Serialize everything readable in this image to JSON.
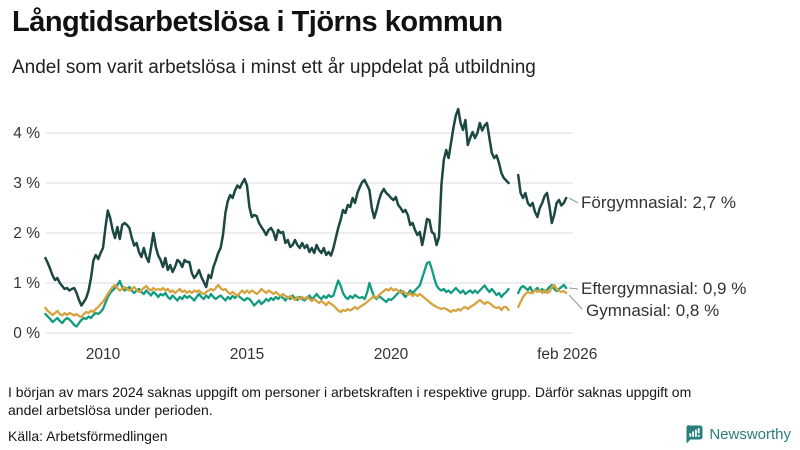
{
  "header": {
    "title": "Långtidsarbetslösa i Tjörns kommun",
    "subtitle": "Andel som varit arbetslösa i minst ett år uppdelat på utbildning"
  },
  "chart_data": {
    "type": "line",
    "title": "Långtidsarbetslösa i Tjörns kommun",
    "x_start_year": 2008,
    "x_months_per_point": 1,
    "x_tick_labels": [
      "2010",
      "2015",
      "2020",
      "feb 2026"
    ],
    "x_tick_years": [
      2010,
      2015,
      2020,
      2026.12
    ],
    "y_tick_labels": [
      "0 %",
      "1 %",
      "2 %",
      "3 %",
      "4 %"
    ],
    "y_ticks": [
      0,
      1,
      2,
      3,
      4
    ],
    "ylim": [
      0,
      4.6
    ],
    "grid": true,
    "gap_note": "mars 2024",
    "series": [
      {
        "name": "Förgymnasial",
        "end_label": "Förgymnasial: 2,7 %",
        "end_value": "2,7 %",
        "color": "#1c4742",
        "values": [
          1.5,
          1.4,
          1.28,
          1.15,
          1.06,
          1.1,
          1.0,
          0.94,
          0.88,
          0.9,
          0.85,
          0.88,
          0.9,
          0.8,
          0.66,
          0.55,
          0.62,
          0.7,
          0.85,
          1.1,
          1.45,
          1.56,
          1.48,
          1.6,
          1.7,
          2.1,
          2.45,
          2.3,
          2.06,
          1.9,
          2.12,
          1.88,
          2.16,
          2.2,
          2.16,
          2.1,
          1.9,
          1.75,
          1.8,
          1.62,
          1.52,
          1.7,
          1.52,
          1.42,
          1.7,
          2.0,
          1.72,
          1.55,
          1.46,
          1.32,
          1.5,
          1.26,
          1.36,
          1.22,
          1.32,
          1.46,
          1.42,
          1.32,
          1.46,
          1.42,
          1.42,
          1.2,
          1.1,
          1.16,
          1.26,
          1.12,
          1.02,
          0.92,
          1.16,
          1.1,
          1.32,
          1.45,
          1.6,
          1.7,
          1.96,
          2.4,
          2.64,
          2.76,
          2.7,
          2.85,
          2.95,
          2.9,
          3.0,
          3.08,
          2.95,
          2.52,
          2.32,
          2.36,
          2.34,
          2.2,
          2.12,
          2.05,
          1.96,
          2.06,
          2.1,
          2.02,
          1.86,
          2.06,
          2.0,
          2.02,
          1.8,
          1.86,
          1.72,
          1.76,
          1.86,
          1.76,
          1.7,
          1.8,
          1.7,
          1.76,
          1.62,
          1.7,
          1.6,
          1.76,
          1.66,
          1.6,
          1.7,
          1.56,
          1.62,
          1.55,
          1.7,
          1.9,
          2.1,
          2.26,
          2.46,
          2.4,
          2.56,
          2.52,
          2.7,
          2.6,
          2.8,
          2.92,
          3.02,
          3.06,
          2.96,
          2.86,
          2.5,
          2.3,
          2.46,
          2.66,
          2.8,
          2.88,
          2.8,
          2.76,
          2.7,
          2.66,
          2.72,
          2.56,
          2.5,
          2.42,
          2.46,
          2.36,
          2.16,
          2.2,
          2.06,
          1.96,
          2.02,
          1.76,
          2.0,
          2.28,
          2.26,
          2.02,
          1.98,
          1.76,
          1.92,
          2.96,
          3.46,
          3.66,
          3.5,
          3.8,
          4.1,
          4.35,
          4.48,
          4.2,
          4.06,
          4.26,
          3.76,
          3.9,
          4.02,
          3.9,
          4.0,
          4.2,
          4.05,
          4.15,
          4.2,
          3.9,
          3.6,
          3.5,
          3.55,
          3.4,
          3.2,
          3.1,
          3.05,
          3.0,
          null,
          null,
          null,
          3.16,
          2.8,
          2.7,
          2.8,
          2.6,
          2.54,
          2.6,
          2.42,
          2.32,
          2.5,
          2.6,
          2.74,
          2.8,
          2.54,
          2.2,
          2.36,
          2.6,
          2.66,
          2.55,
          2.6,
          2.7
        ]
      },
      {
        "name": "Eftergymnasial",
        "end_label": "Eftergymnasial: 0,9 %",
        "end_value": "0,9 %",
        "color": "#119b80",
        "values": [
          0.38,
          0.33,
          0.28,
          0.22,
          0.26,
          0.3,
          0.24,
          0.2,
          0.26,
          0.3,
          0.27,
          0.22,
          0.16,
          0.13,
          0.2,
          0.26,
          0.3,
          0.28,
          0.33,
          0.3,
          0.36,
          0.4,
          0.38,
          0.42,
          0.48,
          0.6,
          0.72,
          0.8,
          0.85,
          0.9,
          0.96,
          1.04,
          0.92,
          0.85,
          0.88,
          0.92,
          0.85,
          0.8,
          0.85,
          0.88,
          0.82,
          0.78,
          0.85,
          0.8,
          0.75,
          0.82,
          0.78,
          0.72,
          0.78,
          0.75,
          0.8,
          0.72,
          0.68,
          0.75,
          0.7,
          0.65,
          0.72,
          0.68,
          0.75,
          0.7,
          0.74,
          0.7,
          0.65,
          0.72,
          0.78,
          0.72,
          0.68,
          0.75,
          0.7,
          0.78,
          0.72,
          0.68,
          0.72,
          0.75,
          0.7,
          0.65,
          0.72,
          0.68,
          0.74,
          0.7,
          0.76,
          0.72,
          0.68,
          0.65,
          0.7,
          0.68,
          0.62,
          0.55,
          0.6,
          0.65,
          0.58,
          0.62,
          0.68,
          0.64,
          0.7,
          0.66,
          0.72,
          0.68,
          0.74,
          0.7,
          0.65,
          0.72,
          0.68,
          0.75,
          0.7,
          0.66,
          0.72,
          0.68,
          0.65,
          0.7,
          0.75,
          0.68,
          0.72,
          0.78,
          0.72,
          0.68,
          0.74,
          0.7,
          0.76,
          0.72,
          0.75,
          0.9,
          1.05,
          0.95,
          0.8,
          0.72,
          0.68,
          0.74,
          0.7,
          0.76,
          0.72,
          0.7,
          0.72,
          0.68,
          0.8,
          1.0,
          0.85,
          0.72,
          0.68,
          0.74,
          0.7,
          0.66,
          0.62,
          0.68,
          0.66,
          0.7,
          0.75,
          0.8,
          0.85,
          0.78,
          0.72,
          0.78,
          0.85,
          0.8,
          0.85,
          0.9,
          0.95,
          1.1,
          1.25,
          1.4,
          1.42,
          1.28,
          1.1,
          0.95,
          0.88,
          0.85,
          0.88,
          0.82,
          0.85,
          0.8,
          0.85,
          0.9,
          0.85,
          0.8,
          0.85,
          0.78,
          0.82,
          0.85,
          0.8,
          0.85,
          0.8,
          0.85,
          0.9,
          0.95,
          0.88,
          0.82,
          0.88,
          0.82,
          0.76,
          0.8,
          0.72,
          0.78,
          0.82,
          0.88,
          null,
          null,
          null,
          0.8,
          0.9,
          0.94,
          0.9,
          0.86,
          0.92,
          0.82,
          0.86,
          0.9,
          0.84,
          0.88,
          0.82,
          0.86,
          0.92,
          0.96,
          0.88,
          0.84,
          0.88,
          0.92,
          0.96,
          0.9
        ]
      },
      {
        "name": "Gymnasial",
        "end_label": "Gymnasial: 0,8 %",
        "end_value": "0,8 %",
        "color": "#d7a33e",
        "values": [
          0.5,
          0.44,
          0.4,
          0.36,
          0.4,
          0.44,
          0.38,
          0.35,
          0.4,
          0.36,
          0.4,
          0.38,
          0.35,
          0.38,
          0.34,
          0.32,
          0.38,
          0.42,
          0.4,
          0.45,
          0.42,
          0.48,
          0.52,
          0.58,
          0.62,
          0.7,
          0.78,
          0.85,
          0.92,
          0.96,
          0.9,
          0.85,
          0.88,
          0.92,
          0.88,
          0.85,
          0.88,
          0.92,
          0.86,
          0.82,
          0.86,
          0.9,
          0.94,
          0.88,
          0.85,
          0.9,
          0.86,
          0.88,
          0.86,
          0.9,
          0.85,
          0.88,
          0.82,
          0.85,
          0.8,
          0.84,
          0.88,
          0.82,
          0.85,
          0.8,
          0.84,
          0.8,
          0.85,
          0.82,
          0.85,
          0.8,
          0.78,
          0.82,
          0.85,
          0.88,
          0.85,
          0.9,
          0.96,
          0.9,
          0.86,
          0.88,
          0.82,
          0.78,
          0.82,
          0.78,
          0.74,
          0.8,
          0.85,
          0.8,
          0.85,
          0.8,
          0.85,
          0.82,
          0.78,
          0.82,
          0.88,
          0.84,
          0.8,
          0.85,
          0.82,
          0.78,
          0.82,
          0.78,
          0.74,
          0.78,
          0.74,
          0.7,
          0.74,
          0.7,
          0.66,
          0.72,
          0.68,
          0.72,
          0.68,
          0.72,
          0.68,
          0.64,
          0.68,
          0.64,
          0.6,
          0.64,
          0.6,
          0.56,
          0.62,
          0.58,
          0.55,
          0.5,
          0.45,
          0.42,
          0.46,
          0.44,
          0.48,
          0.45,
          0.48,
          0.52,
          0.48,
          0.52,
          0.55,
          0.58,
          0.62,
          0.66,
          0.7,
          0.74,
          0.7,
          0.76,
          0.8,
          0.84,
          0.88,
          0.85,
          0.9,
          0.85,
          0.88,
          0.84,
          0.8,
          0.84,
          0.8,
          0.76,
          0.8,
          0.74,
          0.78,
          0.74,
          0.78,
          0.74,
          0.7,
          0.66,
          0.62,
          0.58,
          0.55,
          0.52,
          0.5,
          0.48,
          0.5,
          0.48,
          0.45,
          0.42,
          0.46,
          0.44,
          0.48,
          0.45,
          0.5,
          0.52,
          0.48,
          0.52,
          0.55,
          0.58,
          0.62,
          0.66,
          0.62,
          0.58,
          0.62,
          0.6,
          0.56,
          0.52,
          0.5,
          0.52,
          0.46,
          0.52,
          0.52,
          0.46,
          null,
          null,
          null,
          0.52,
          0.62,
          0.72,
          0.78,
          0.82,
          0.8,
          0.8,
          0.86,
          0.82,
          0.86,
          0.8,
          0.86,
          0.8,
          0.82,
          0.92,
          0.96,
          0.88,
          0.84,
          0.82,
          0.84,
          0.8
        ]
      }
    ],
    "colors": {
      "grid": "#e2e2e8",
      "axis_text": "#333333",
      "leader": "#999999"
    }
  },
  "footer": {
    "note_lines": [
      "I början av mars 2024 saknas uppgift om personer i arbetskraften i respektive grupp. Därför saknas uppgift om",
      "andel arbetslösa under perioden."
    ],
    "source": "Källa: Arbetsförmedlingen",
    "brand": "Newsworthy",
    "brand_color": "#2a7e79"
  }
}
